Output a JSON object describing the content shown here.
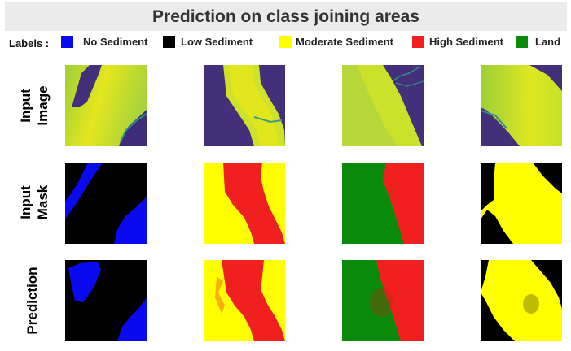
{
  "title": "Prediction on class joining areas",
  "legend": {
    "label": "Labels :",
    "items": [
      {
        "name": "No Sediment",
        "color": "#0a0af0"
      },
      {
        "name": "Low Sediment",
        "color": "#000000"
      },
      {
        "name": "Moderate Sediment",
        "color": "#ffff00"
      },
      {
        "name": "High Sediment",
        "color": "#f02020"
      },
      {
        "name": "Land",
        "color": "#0a8a0a"
      }
    ]
  },
  "rows": [
    {
      "label_line1": "Input",
      "label_line2": "Image"
    },
    {
      "label_line1": "Input",
      "label_line2": "Mask"
    },
    {
      "label_line1": "Prediction",
      "label_line2": ""
    }
  ],
  "colors": {
    "no_sediment": "#0a0af0",
    "low_sediment": "#000000",
    "moderate_sediment": "#ffff00",
    "high_sediment": "#f02020",
    "land": "#0a8a0a",
    "image_dark": "#44307a",
    "image_river": "#c8dc28"
  }
}
